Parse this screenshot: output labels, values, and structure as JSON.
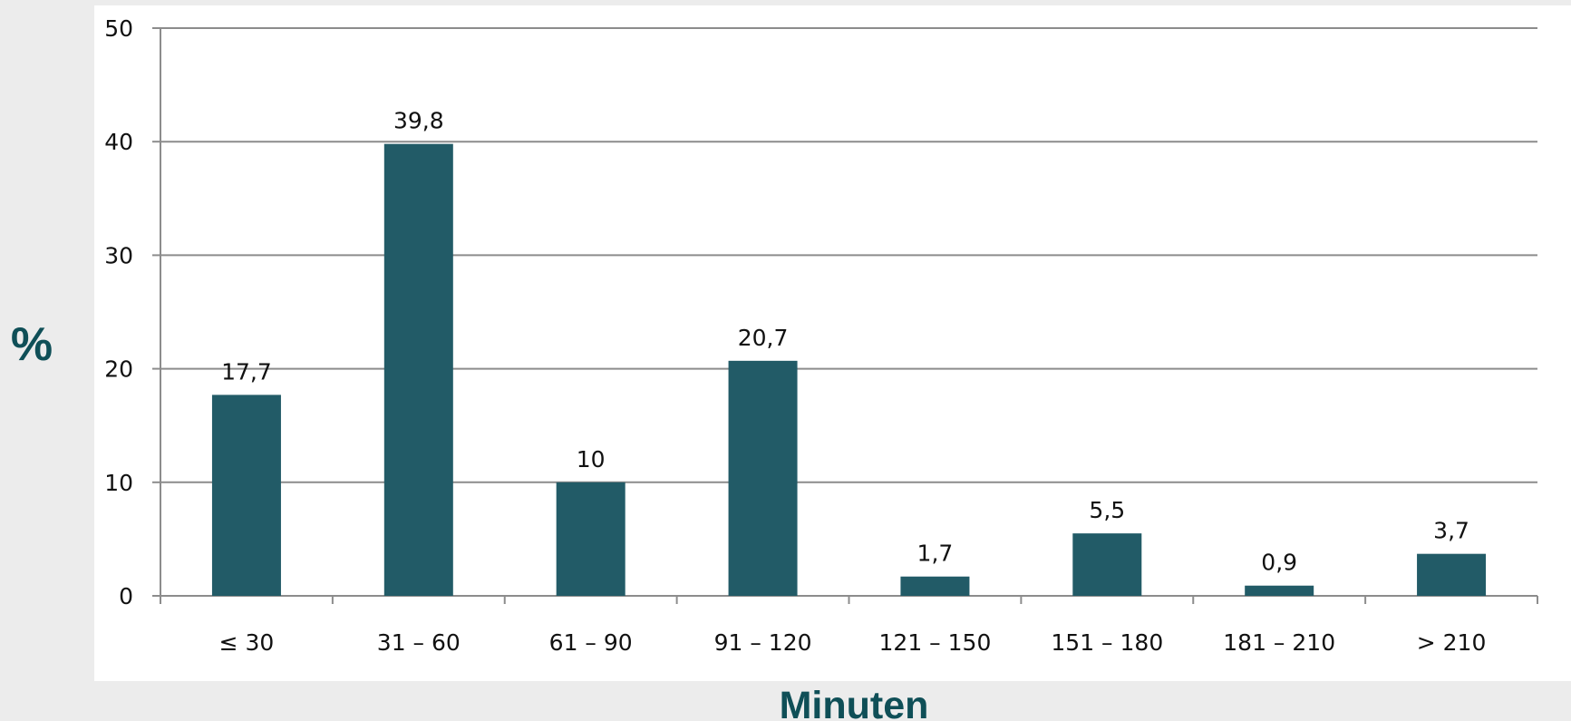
{
  "colors": {
    "page_background": "#ececec",
    "plot_background": "#ffffff",
    "bar": "#225b67",
    "axis_title": "#0f4f57",
    "grid": "#8c8c8c",
    "text": "#111111"
  },
  "chart_data": {
    "type": "bar",
    "title": "",
    "xlabel": "Minuten",
    "ylabel": "%",
    "categories": [
      "≤ 30",
      "31 – 60",
      "61 – 90",
      "91 – 120",
      "121 – 150",
      "151 – 180",
      "181 – 210",
      "> 210"
    ],
    "values": [
      17.7,
      39.8,
      10,
      20.7,
      1.7,
      5.5,
      0.9,
      3.7
    ],
    "data_labels": [
      "17,7",
      "39,8",
      "10",
      "20,7",
      "1,7",
      "5,5",
      "0,9",
      "3,7"
    ],
    "ylim": [
      0,
      50
    ],
    "yticks": [
      0,
      10,
      20,
      30,
      40,
      50
    ],
    "ytick_labels": [
      "0",
      "10",
      "20",
      "30",
      "40",
      "50"
    ],
    "grid": true,
    "legend": "none"
  }
}
